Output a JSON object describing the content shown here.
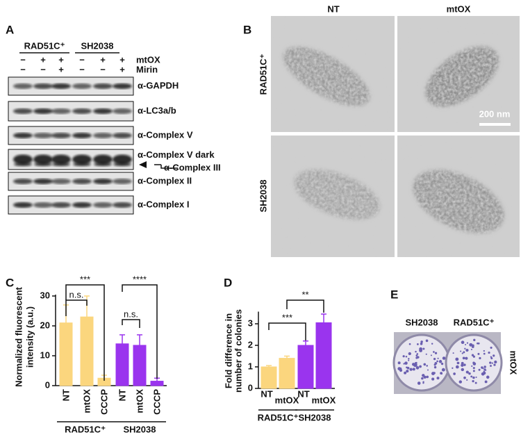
{
  "panel_a": {
    "letter": "A",
    "groups": [
      "RAD51C⁺",
      "SH2038"
    ],
    "treatments": [
      {
        "label": "mtOX",
        "signs": [
          "−",
          "+",
          "+",
          "−",
          "+",
          "+"
        ]
      },
      {
        "label": "Mirin",
        "signs": [
          "−",
          "−",
          "+",
          "−",
          "−",
          "+"
        ]
      }
    ],
    "blots": [
      "α-GAPDH",
      "α-LC3a/b",
      "α-Complex V",
      "α-Complex V dark",
      "α-Complex II",
      "α-Complex I"
    ],
    "arrow_label": "α-Complex III"
  },
  "panel_b": {
    "letter": "B",
    "columns": [
      "NT",
      "mtOX"
    ],
    "rows": [
      "RAD51C⁺",
      "SH2038"
    ],
    "scale_bar": "200 nm"
  },
  "chart_data": [
    {
      "type": "bar",
      "panel_letter": "C",
      "y_label": [
        "Normalized fluorescent",
        "intensity (a.u.)"
      ],
      "categories": [
        "NT",
        "mtOX",
        "CCCP",
        "NT",
        "mtOX",
        "CCCP"
      ],
      "series": [
        {
          "name": "RAD51C⁺",
          "color": "#fbd67e",
          "values": [
            21,
            23,
            2.5,
            null,
            null,
            null
          ],
          "errors": [
            6,
            7,
            1,
            null,
            null,
            null
          ]
        },
        {
          "name": "SH2038",
          "color": "#9a34ee",
          "values": [
            null,
            null,
            null,
            14,
            13.5,
            1.5
          ],
          "errors": [
            null,
            null,
            null,
            3,
            3.5,
            1
          ]
        }
      ],
      "ylim": [
        0,
        30
      ],
      "yticks": [
        0,
        10,
        20,
        30
      ],
      "annotations": [
        "***",
        "n.s.",
        "****",
        "n.s."
      ]
    },
    {
      "type": "bar",
      "panel_letter": "D",
      "y_label": [
        "Fold difference in",
        "number of colonies"
      ],
      "categories": [
        "NT",
        "mtOX",
        "NT",
        "mtOX"
      ],
      "series": [
        {
          "name": "RAD51C⁺",
          "color": "#fbd67e",
          "values": [
            1.0,
            1.4,
            null,
            null
          ],
          "errors": [
            0.06,
            0.1,
            null,
            null
          ]
        },
        {
          "name": "SH2038",
          "color": "#9a34ee",
          "values": [
            null,
            null,
            2.0,
            3.05
          ],
          "errors": [
            null,
            null,
            0.2,
            0.4
          ]
        }
      ],
      "ylim": [
        0,
        3.5
      ],
      "yticks": [
        0,
        1,
        2,
        3
      ],
      "annotations": [
        "***",
        "**"
      ]
    }
  ],
  "panel_e": {
    "letter": "E",
    "columns": [
      "SH2038",
      "RAD51C⁺"
    ],
    "row": "mtOX"
  }
}
